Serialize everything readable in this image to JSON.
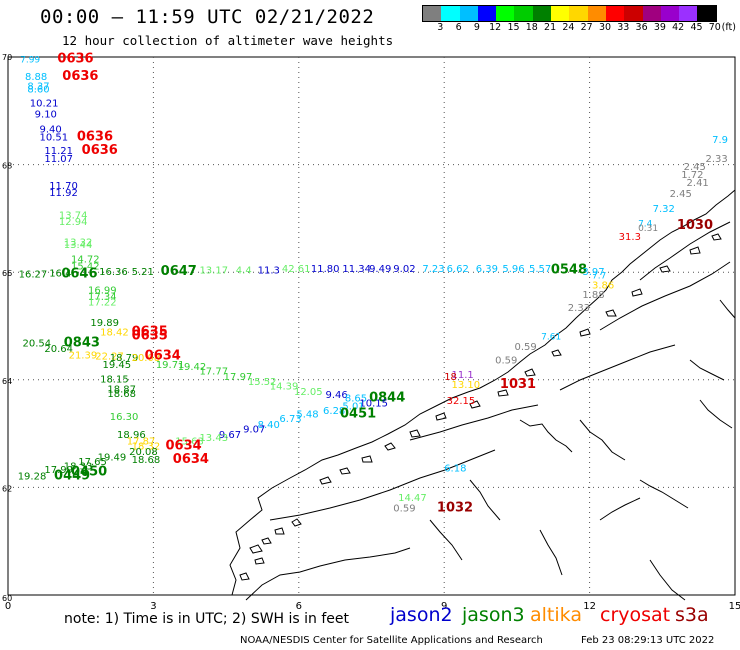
{
  "header": {
    "title": "00:00 – 11:59 UTC 02/21/2022",
    "subtitle": "12 hour collection of altimeter wave heights"
  },
  "legend": {
    "colors": [
      "#7f7f7f",
      "#00ffff",
      "#00bfff",
      "#0000ff",
      "#00ff00",
      "#00cc00",
      "#008000",
      "#ffff00",
      "#ffd700",
      "#ff8c00",
      "#ff0000",
      "#cc0000",
      "#a0007f",
      "#9900cc",
      "#9b30ff",
      "#000000"
    ],
    "labels": [
      "3",
      "6",
      "9",
      "12",
      "15",
      "18",
      "21",
      "24",
      "27",
      "30",
      "33",
      "36",
      "39",
      "42",
      "45",
      "70",
      "(ft)"
    ]
  },
  "axes": {
    "x_ticks": [
      "0",
      "3",
      "6",
      "9",
      "12",
      "15"
    ],
    "y_ticks": [
      "70",
      "68",
      "66",
      "64",
      "62",
      "60"
    ]
  },
  "footer": {
    "note": "note:  1) Time is in UTC;  2) SWH is in feet",
    "credit": "NOAA/NESDIS Center for Satellite Applications and Research",
    "generated": "Feb 23 08:29:13 UTC 2022"
  },
  "satellites": [
    {
      "name": "jason2",
      "color": "#0000cc"
    },
    {
      "name": "jason3",
      "color": "#008000"
    },
    {
      "name": "altika",
      "color": "#ff8c00"
    },
    {
      "name": "cryosat",
      "color": "#ee0000"
    },
    {
      "name": "s3a",
      "color": "#990000"
    }
  ],
  "wave_labels": [
    {
      "t": "7.99",
      "x": 0.25,
      "y": 69.9,
      "c": "#00bfff",
      "s": 9
    },
    {
      "t": "0636",
      "x": 1.02,
      "y": 69.9,
      "c": "#ee0000",
      "s": 13
    },
    {
      "t": "8.88",
      "x": 0.35,
      "y": 69.57,
      "c": "#00bfff",
      "s": 10
    },
    {
      "t": "0636",
      "x": 1.12,
      "y": 69.57,
      "c": "#ee0000",
      "s": 13
    },
    {
      "t": "8.37",
      "x": 0.4,
      "y": 69.4,
      "c": "#00bfff",
      "s": 10
    },
    {
      "t": "8.60",
      "x": 0.4,
      "y": 69.34,
      "c": "#00bfff",
      "s": 10
    },
    {
      "t": "10.21",
      "x": 0.45,
      "y": 69.08,
      "c": "#0000cc",
      "s": 10
    },
    {
      "t": "9.10",
      "x": 0.55,
      "y": 68.88,
      "c": "#0000cc",
      "s": 10
    },
    {
      "t": "9.40",
      "x": 0.65,
      "y": 68.6,
      "c": "#0000cc",
      "s": 10
    },
    {
      "t": "10.51",
      "x": 0.65,
      "y": 68.45,
      "c": "#0000cc",
      "s": 10
    },
    {
      "t": "0636",
      "x": 1.42,
      "y": 68.45,
      "c": "#ee0000",
      "s": 13
    },
    {
      "t": "11.21",
      "x": 0.75,
      "y": 68.2,
      "c": "#0000cc",
      "s": 10
    },
    {
      "t": "0636",
      "x": 1.52,
      "y": 68.2,
      "c": "#ee0000",
      "s": 13
    },
    {
      "t": "11.07",
      "x": 0.75,
      "y": 68.05,
      "c": "#0000cc",
      "s": 10
    },
    {
      "t": "11.70",
      "x": 0.85,
      "y": 67.55,
      "c": "#0000cc",
      "s": 10
    },
    {
      "t": "11.92",
      "x": 0.85,
      "y": 67.42,
      "c": "#0000cc",
      "s": 10
    },
    {
      "t": "13.74",
      "x": 1.05,
      "y": 67.0,
      "c": "#66ee66",
      "s": 10
    },
    {
      "t": "12.94",
      "x": 1.05,
      "y": 66.88,
      "c": "#66ee66",
      "s": 10
    },
    {
      "t": "13.32",
      "x": 1.15,
      "y": 66.5,
      "c": "#66ee66",
      "s": 10
    },
    {
      "t": "13.44",
      "x": 1.15,
      "y": 66.45,
      "c": "#66ee66",
      "s": 10
    },
    {
      "t": "14.72",
      "x": 1.3,
      "y": 66.18,
      "c": "#33cc33",
      "s": 10
    },
    {
      "t": "15.42",
      "x": 1.3,
      "y": 66.05,
      "c": "#33cc33",
      "s": 10
    },
    {
      "t": "16.27",
      "x": 0.22,
      "y": 65.9,
      "c": "#008000",
      "s": 10
    },
    {
      "t": "16.4",
      "x": 0.85,
      "y": 65.92,
      "c": "#008000",
      "s": 10
    },
    {
      "t": "0646",
      "x": 1.1,
      "y": 65.9,
      "c": "#008000",
      "s": 13
    },
    {
      "t": "16.36",
      "x": 1.88,
      "y": 65.95,
      "c": "#008000",
      "s": 10
    },
    {
      "t": "5.21",
      "x": 2.55,
      "y": 65.95,
      "c": "#008000",
      "s": 10
    },
    {
      "t": "0647",
      "x": 3.15,
      "y": 65.95,
      "c": "#008000",
      "s": 13
    },
    {
      "t": "13.17",
      "x": 3.95,
      "y": 65.98,
      "c": "#66ee66",
      "s": 10
    },
    {
      "t": "4.4",
      "x": 4.7,
      "y": 65.98,
      "c": "#66ee66",
      "s": 10
    },
    {
      "t": "11.3",
      "x": 5.15,
      "y": 65.98,
      "c": "#0000cc",
      "s": 10
    },
    {
      "t": "42.61",
      "x": 5.65,
      "y": 66.0,
      "c": "#66ee66",
      "s": 10
    },
    {
      "t": "11.80",
      "x": 6.25,
      "y": 66.0,
      "c": "#0000cc",
      "s": 10
    },
    {
      "t": "11.34",
      "x": 6.9,
      "y": 66.0,
      "c": "#0000cc",
      "s": 10
    },
    {
      "t": "9.49",
      "x": 7.45,
      "y": 66.0,
      "c": "#0000cc",
      "s": 10
    },
    {
      "t": "9.02",
      "x": 7.95,
      "y": 66.0,
      "c": "#0000cc",
      "s": 10
    },
    {
      "t": "7.23",
      "x": 8.55,
      "y": 66.0,
      "c": "#00bfff",
      "s": 10
    },
    {
      "t": "6.62",
      "x": 9.05,
      "y": 66.0,
      "c": "#00bfff",
      "s": 10
    },
    {
      "t": "6.39",
      "x": 9.65,
      "y": 66.0,
      "c": "#00bfff",
      "s": 10
    },
    {
      "t": "5.96",
      "x": 10.2,
      "y": 66.0,
      "c": "#00bfff",
      "s": 10
    },
    {
      "t": "5.57",
      "x": 10.75,
      "y": 66.0,
      "c": "#00bfff",
      "s": 10
    },
    {
      "t": "0548",
      "x": 11.2,
      "y": 65.98,
      "c": "#008000",
      "s": 13
    },
    {
      "t": "3.97",
      "x": 11.85,
      "y": 65.95,
      "c": "#00bfff",
      "s": 10
    },
    {
      "t": "16.99",
      "x": 1.65,
      "y": 65.6,
      "c": "#33cc33",
      "s": 10
    },
    {
      "t": "17.34",
      "x": 1.65,
      "y": 65.48,
      "c": "#33cc33",
      "s": 10
    },
    {
      "t": "17.22",
      "x": 1.65,
      "y": 65.38,
      "c": "#66ee66",
      "s": 10
    },
    {
      "t": "19.89",
      "x": 1.7,
      "y": 65.0,
      "c": "#008000",
      "s": 10
    },
    {
      "t": "18.42",
      "x": 1.9,
      "y": 64.82,
      "c": "#ffd700",
      "s": 10
    },
    {
      "t": "0635",
      "x": 2.55,
      "y": 64.82,
      "c": "#ee0000",
      "s": 13
    },
    {
      "t": "0635",
      "x": 2.55,
      "y": 64.75,
      "c": "#ee0000",
      "s": 13
    },
    {
      "t": "20.54",
      "x": 0.3,
      "y": 64.62,
      "c": "#008000",
      "s": 10
    },
    {
      "t": "0843",
      "x": 1.15,
      "y": 64.62,
      "c": "#008000",
      "s": 13
    },
    {
      "t": "20.64",
      "x": 0.75,
      "y": 64.52,
      "c": "#008000",
      "s": 10
    },
    {
      "t": "21.39",
      "x": 1.25,
      "y": 64.4,
      "c": "#ffd700",
      "s": 10
    },
    {
      "t": "22.27",
      "x": 1.8,
      "y": 64.38,
      "c": "#ffd700",
      "s": 10
    },
    {
      "t": "18.79",
      "x": 2.1,
      "y": 64.35,
      "c": "#008000",
      "s": 10
    },
    {
      "t": "20.08",
      "x": 2.55,
      "y": 64.35,
      "c": "#ffd700",
      "s": 10
    },
    {
      "t": "0634",
      "x": 2.82,
      "y": 64.38,
      "c": "#ee0000",
      "s": 13
    },
    {
      "t": "19.45",
      "x": 1.95,
      "y": 64.22,
      "c": "#008000",
      "s": 10
    },
    {
      "t": "19.71",
      "x": 3.05,
      "y": 64.22,
      "c": "#33cc33",
      "s": 10
    },
    {
      "t": "19.42",
      "x": 3.5,
      "y": 64.18,
      "c": "#33cc33",
      "s": 10
    },
    {
      "t": "17.77",
      "x": 3.95,
      "y": 64.1,
      "c": "#33cc33",
      "s": 10
    },
    {
      "t": "17.97",
      "x": 4.45,
      "y": 64.0,
      "c": "#33cc33",
      "s": 10
    },
    {
      "t": "15.52",
      "x": 4.95,
      "y": 63.9,
      "c": "#66ee66",
      "s": 10
    },
    {
      "t": "14.39",
      "x": 5.4,
      "y": 63.82,
      "c": "#66ee66",
      "s": 10
    },
    {
      "t": "12.05",
      "x": 5.9,
      "y": 63.72,
      "c": "#66ee66",
      "s": 10
    },
    {
      "t": "9.46",
      "x": 6.55,
      "y": 63.66,
      "c": "#0000cc",
      "s": 10
    },
    {
      "t": "8.65",
      "x": 6.95,
      "y": 63.6,
      "c": "#00bfff",
      "s": 10
    },
    {
      "t": "0844",
      "x": 7.45,
      "y": 63.6,
      "c": "#008000",
      "s": 13
    },
    {
      "t": "18.15",
      "x": 1.9,
      "y": 63.95,
      "c": "#008000",
      "s": 10
    },
    {
      "t": "18.87",
      "x": 2.05,
      "y": 63.76,
      "c": "#008000",
      "s": 10
    },
    {
      "t": "18.68",
      "x": 2.05,
      "y": 63.68,
      "c": "#008000",
      "s": 10
    },
    {
      "t": "10.15",
      "x": 7.25,
      "y": 63.5,
      "c": "#0000cc",
      "s": 10
    },
    {
      "t": "5.01",
      "x": 6.9,
      "y": 63.45,
      "c": "#00bfff",
      "s": 10
    },
    {
      "t": "6.28",
      "x": 6.5,
      "y": 63.36,
      "c": "#00bfff",
      "s": 10
    },
    {
      "t": "0451",
      "x": 6.85,
      "y": 63.3,
      "c": "#008000",
      "s": 13
    },
    {
      "t": "5.48",
      "x": 5.95,
      "y": 63.3,
      "c": "#00bfff",
      "s": 10
    },
    {
      "t": "6.73",
      "x": 5.6,
      "y": 63.22,
      "c": "#00bfff",
      "s": 10
    },
    {
      "t": "8.40",
      "x": 5.15,
      "y": 63.1,
      "c": "#00bfff",
      "s": 10
    },
    {
      "t": "9.07",
      "x": 4.85,
      "y": 63.02,
      "c": "#0000cc",
      "s": 10
    },
    {
      "t": "9.67",
      "x": 4.35,
      "y": 62.92,
      "c": "#0000cc",
      "s": 10
    },
    {
      "t": "16.30",
      "x": 2.1,
      "y": 63.25,
      "c": "#33cc33",
      "s": 10
    },
    {
      "t": "18.96",
      "x": 2.25,
      "y": 62.92,
      "c": "#008000",
      "s": 10
    },
    {
      "t": "17.87",
      "x": 2.45,
      "y": 62.8,
      "c": "#ffd700",
      "s": 10
    },
    {
      "t": "15.63",
      "x": 3.45,
      "y": 62.8,
      "c": "#66ee66",
      "s": 10
    },
    {
      "t": "13.43",
      "x": 3.95,
      "y": 62.86,
      "c": "#66ee66",
      "s": 10
    },
    {
      "t": "18.32",
      "x": 2.55,
      "y": 62.7,
      "c": "#ffd700",
      "s": 10
    },
    {
      "t": "0634",
      "x": 3.25,
      "y": 62.7,
      "c": "#ee0000",
      "s": 13
    },
    {
      "t": "20.08",
      "x": 2.5,
      "y": 62.6,
      "c": "#008000",
      "s": 10
    },
    {
      "t": "19.49",
      "x": 1.85,
      "y": 62.5,
      "c": "#008000",
      "s": 10
    },
    {
      "t": "18.68",
      "x": 2.55,
      "y": 62.45,
      "c": "#008000",
      "s": 10
    },
    {
      "t": "0634",
      "x": 3.4,
      "y": 62.45,
      "c": "#ee0000",
      "s": 13
    },
    {
      "t": "17.65",
      "x": 1.45,
      "y": 62.42,
      "c": "#008000",
      "s": 10
    },
    {
      "t": "18.33",
      "x": 1.15,
      "y": 62.33,
      "c": "#008000",
      "s": 10
    },
    {
      "t": "17.99",
      "x": 0.75,
      "y": 62.27,
      "c": "#008000",
      "s": 10
    },
    {
      "t": "0450",
      "x": 1.3,
      "y": 62.22,
      "c": "#008000",
      "s": 13
    },
    {
      "t": "19.28",
      "x": 0.2,
      "y": 62.15,
      "c": "#008000",
      "s": 10
    },
    {
      "t": "0449",
      "x": 0.95,
      "y": 62.15,
      "c": "#008000",
      "s": 13
    },
    {
      "t": "7.32",
      "x": 13.3,
      "y": 67.12,
      "c": "#00bfff",
      "s": 10
    },
    {
      "t": "2.45",
      "x": 14.4,
      "y": 67.9,
      "c": "#7f7f7f",
      "s": 10
    },
    {
      "t": "1.72",
      "x": 14.35,
      "y": 67.75,
      "c": "#7f7f7f",
      "s": 10
    },
    {
      "t": "2.41",
      "x": 14.0,
      "y": 67.6,
      "c": "#7f7f7f",
      "s": 10
    },
    {
      "t": "2.45",
      "x": 13.65,
      "y": 67.4,
      "c": "#7f7f7f",
      "s": 10
    },
    {
      "t": "2.33",
      "x": 14.85,
      "y": 68.05,
      "c": "#7f7f7f",
      "s": 10
    },
    {
      "t": "7.9",
      "x": 14.95,
      "y": 68.4,
      "c": "#00bfff",
      "s": 10
    },
    {
      "t": "1030",
      "x": 13.8,
      "y": 66.8,
      "c": "#990000",
      "s": 13
    },
    {
      "t": "7.4",
      "x": 13.0,
      "y": 66.85,
      "c": "#00bfff",
      "s": 9
    },
    {
      "t": "0.31",
      "x": 13.0,
      "y": 66.77,
      "c": "#7f7f7f",
      "s": 9
    },
    {
      "t": "31.3",
      "x": 12.6,
      "y": 66.6,
      "c": "#ee0000",
      "s": 10
    },
    {
      "t": "3.86",
      "x": 12.05,
      "y": 65.7,
      "c": "#ffd700",
      "s": 10
    },
    {
      "t": "1.88",
      "x": 11.85,
      "y": 65.52,
      "c": "#7f7f7f",
      "s": 10
    },
    {
      "t": "2.33",
      "x": 11.55,
      "y": 65.28,
      "c": "#7f7f7f",
      "s": 10
    },
    {
      "t": "7.7",
      "x": 12.05,
      "y": 65.88,
      "c": "#00bfff",
      "s": 9
    },
    {
      "t": "7.61",
      "x": 11.0,
      "y": 64.75,
      "c": "#00bfff",
      "s": 9
    },
    {
      "t": "0.59",
      "x": 10.45,
      "y": 64.55,
      "c": "#7f7f7f",
      "s": 10
    },
    {
      "t": "0.59",
      "x": 10.05,
      "y": 64.3,
      "c": "#7f7f7f",
      "s": 10
    },
    {
      "t": "11.1",
      "x": 9.15,
      "y": 64.03,
      "c": "#9933cc",
      "s": 10
    },
    {
      "t": "18",
      "x": 9.0,
      "y": 64.0,
      "c": "#cc0000",
      "s": 10
    },
    {
      "t": "1031",
      "x": 10.15,
      "y": 63.85,
      "c": "#cc0000",
      "s": 13
    },
    {
      "t": "13.10",
      "x": 9.15,
      "y": 63.85,
      "c": "#ffd700",
      "s": 10
    },
    {
      "t": "32.15",
      "x": 9.05,
      "y": 63.55,
      "c": "#ee0000",
      "s": 10
    },
    {
      "t": "6.18",
      "x": 9.0,
      "y": 62.3,
      "c": "#00bfff",
      "s": 10
    },
    {
      "t": "14.47",
      "x": 8.05,
      "y": 61.75,
      "c": "#66ee66",
      "s": 10
    },
    {
      "t": "0.59",
      "x": 7.95,
      "y": 61.55,
      "c": "#7f7f7f",
      "s": 10
    },
    {
      "t": "1032",
      "x": 8.85,
      "y": 61.55,
      "c": "#990000",
      "s": 13
    }
  ]
}
